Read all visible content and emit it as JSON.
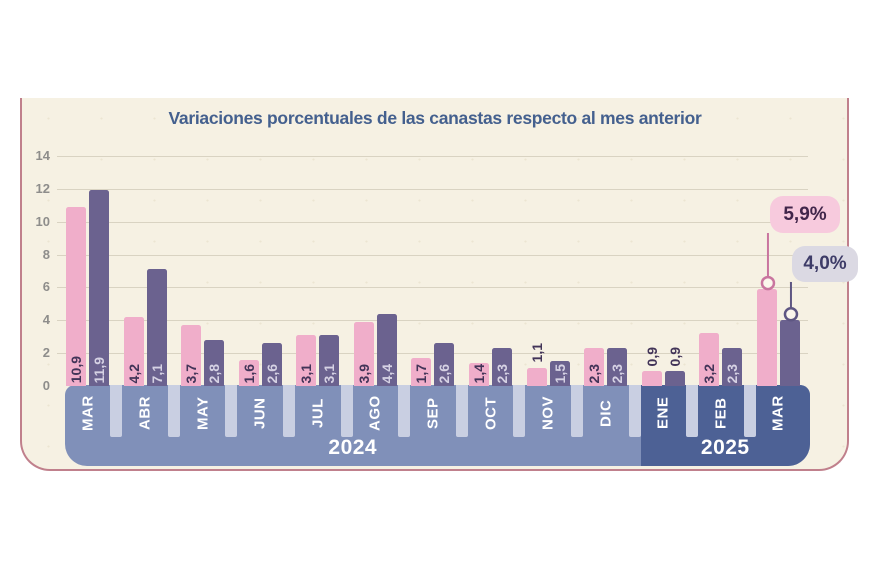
{
  "colors": {
    "background_card": "#f6f1e3",
    "card_border": "#c0808c",
    "title": "#44608e",
    "gridline": "#d9d3c2",
    "axis_text": "#8e8d8b",
    "bar_rosa": "#f0aeca",
    "bar_violeta": "#6b628f",
    "bar_label_dark": "#423458",
    "bar_label_light": "#d6d2e4",
    "band_2024": "#8090b9",
    "band_2025": "#4d6195",
    "band_gap": "#c9cfe2",
    "band_text": "#ffffff",
    "pill_pink_bg": "#f7cadd",
    "pill_gray_bg": "#dbd9e3",
    "pill_pink_text": "#41254a",
    "pill_gray_text": "#3e3c68",
    "connector_pink": "#c9759f",
    "connector_purple": "#5e5682",
    "circle_fill": "#fbf6ec"
  },
  "chart_data": {
    "type": "bar",
    "title": "Variaciones porcentuales de las canastas respecto al mes anterior",
    "unit": "%",
    "ylim": [
      0,
      14
    ],
    "yticks": [
      0,
      2,
      4,
      6,
      8,
      10,
      12,
      14
    ],
    "grid": true,
    "legend": "none",
    "series_names": [
      "rosa",
      "violeta"
    ],
    "x_groups": [
      {
        "month": "MAR",
        "year": "2024",
        "bars": [
          {
            "series": "rosa",
            "value": 10.9,
            "label": "10,9",
            "label_above": false
          },
          {
            "series": "violeta",
            "value": 11.9,
            "label": "11,9",
            "label_above": false
          }
        ]
      },
      {
        "month": "ABR",
        "year": "2024",
        "bars": [
          {
            "series": "rosa",
            "value": 4.2,
            "label": "4,2",
            "label_above": false
          },
          {
            "series": "violeta",
            "value": 7.1,
            "label": "7,1",
            "label_above": false
          }
        ]
      },
      {
        "month": "MAY",
        "year": "2024",
        "bars": [
          {
            "series": "rosa",
            "value": 3.7,
            "label": "3,7",
            "label_above": false
          },
          {
            "series": "violeta",
            "value": 2.8,
            "label": "2,8",
            "label_above": false
          }
        ]
      },
      {
        "month": "JUN",
        "year": "2024",
        "bars": [
          {
            "series": "rosa",
            "value": 1.6,
            "label": "1,6",
            "label_above": false
          },
          {
            "series": "violeta",
            "value": 2.6,
            "label": "2,6",
            "label_above": false
          }
        ]
      },
      {
        "month": "JUL",
        "year": "2024",
        "bars": [
          {
            "series": "rosa",
            "value": 3.1,
            "label": "3,1",
            "label_above": false
          },
          {
            "series": "violeta",
            "value": 3.1,
            "label": "3,1",
            "label_above": false
          }
        ]
      },
      {
        "month": "AGO",
        "year": "2024",
        "bars": [
          {
            "series": "rosa",
            "value": 3.9,
            "label": "3,9",
            "label_above": false
          },
          {
            "series": "violeta",
            "value": 4.4,
            "label": "4,4",
            "label_above": false
          }
        ]
      },
      {
        "month": "SEP",
        "year": "2024",
        "bars": [
          {
            "series": "rosa",
            "value": 1.7,
            "label": "1,7",
            "label_above": false
          },
          {
            "series": "violeta",
            "value": 2.6,
            "label": "2,6",
            "label_above": false
          }
        ]
      },
      {
        "month": "OCT",
        "year": "2024",
        "bars": [
          {
            "series": "rosa",
            "value": 1.4,
            "label": "1,4",
            "label_above": false
          },
          {
            "series": "violeta",
            "value": 2.3,
            "label": "2,3",
            "label_above": false
          }
        ]
      },
      {
        "month": "NOV",
        "year": "2024",
        "bars": [
          {
            "series": "rosa",
            "value": 1.1,
            "label": "1,1",
            "label_above": true
          },
          {
            "series": "violeta",
            "value": 1.5,
            "label": "1,5",
            "label_above": false
          }
        ]
      },
      {
        "month": "DIC",
        "year": "2024",
        "bars": [
          {
            "series": "rosa",
            "value": 2.3,
            "label": "2,3",
            "label_above": false
          },
          {
            "series": "violeta",
            "value": 2.3,
            "label": "2,3",
            "label_above": false
          }
        ]
      },
      {
        "month": "ENE",
        "year": "2025",
        "bars": [
          {
            "series": "rosa",
            "value": 0.9,
            "label": "0,9",
            "label_above": true
          },
          {
            "series": "violeta",
            "value": 0.9,
            "label": "0,9",
            "label_above": true
          }
        ]
      },
      {
        "month": "FEB",
        "year": "2025",
        "bars": [
          {
            "series": "rosa",
            "value": 3.2,
            "label": "3,2",
            "label_above": false
          },
          {
            "series": "violeta",
            "value": 2.3,
            "label": "2,3",
            "label_above": false
          }
        ]
      },
      {
        "month": "MAR",
        "year": "2025",
        "bars": [
          {
            "series": "rosa",
            "value": 5.9,
            "label": null,
            "label_above": false
          },
          {
            "series": "violeta",
            "value": 4.0,
            "label": null,
            "label_above": false
          }
        ]
      }
    ],
    "year_sections": [
      {
        "label": "2024",
        "from": 0,
        "to": 9
      },
      {
        "label": "2025",
        "from": 10,
        "to": 12
      }
    ],
    "callouts": [
      {
        "series": "rosa",
        "month": "MAR",
        "year": "2025",
        "text": "5,9%"
      },
      {
        "series": "violeta",
        "month": "MAR",
        "year": "2025",
        "text": "4,0%"
      }
    ]
  }
}
